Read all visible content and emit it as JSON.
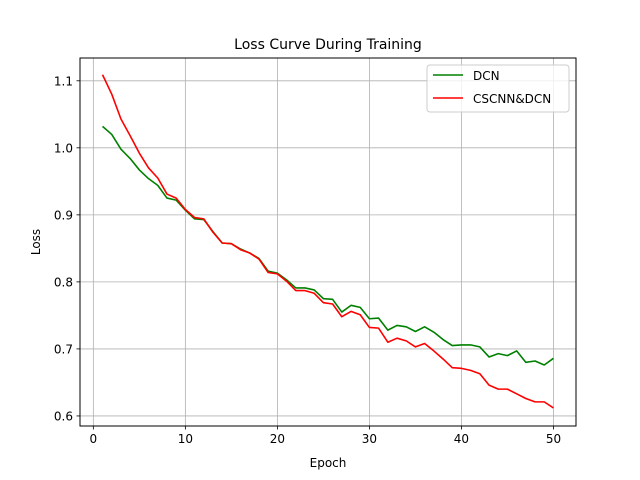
{
  "chart_data": {
    "type": "line",
    "title": "Loss Curve During Training",
    "xlabel": "Epoch",
    "ylabel": "Loss",
    "xlim": [
      -1.45,
      52.45
    ],
    "ylim": [
      0.585,
      1.134
    ],
    "xticks": [
      0,
      10,
      20,
      30,
      40,
      50
    ],
    "yticks": [
      0.6,
      0.7,
      0.8,
      0.9,
      1.0,
      1.1
    ],
    "xtick_labels": [
      "0",
      "10",
      "20",
      "30",
      "40",
      "50"
    ],
    "ytick_labels": [
      "0.6",
      "0.7",
      "0.8",
      "0.9",
      "1.0",
      "1.1"
    ],
    "grid": true,
    "legend_position": "top-right",
    "x": [
      1,
      2,
      3,
      4,
      5,
      6,
      7,
      8,
      9,
      10,
      11,
      12,
      13,
      14,
      15,
      16,
      17,
      18,
      19,
      20,
      21,
      22,
      23,
      24,
      25,
      26,
      27,
      28,
      29,
      30,
      31,
      32,
      33,
      34,
      35,
      36,
      37,
      38,
      39,
      40,
      41,
      42,
      43,
      44,
      45,
      46,
      47,
      48,
      49,
      50
    ],
    "series": [
      {
        "name": "DCN",
        "color": "#008000",
        "values": [
          1.032,
          1.02,
          0.998,
          0.984,
          0.967,
          0.954,
          0.944,
          0.925,
          0.922,
          0.907,
          0.894,
          0.893,
          0.875,
          0.858,
          0.857,
          0.849,
          0.843,
          0.835,
          0.816,
          0.813,
          0.803,
          0.791,
          0.791,
          0.788,
          0.775,
          0.774,
          0.755,
          0.765,
          0.762,
          0.745,
          0.746,
          0.728,
          0.735,
          0.733,
          0.726,
          0.733,
          0.725,
          0.714,
          0.705,
          0.706,
          0.706,
          0.703,
          0.688,
          0.693,
          0.69,
          0.697,
          0.68,
          0.682,
          0.676,
          0.686
        ]
      },
      {
        "name": "CSCNN&DCN",
        "color": "#ff0000",
        "values": [
          1.109,
          1.08,
          1.043,
          1.018,
          0.992,
          0.97,
          0.955,
          0.931,
          0.925,
          0.908,
          0.896,
          0.894,
          0.874,
          0.858,
          0.857,
          0.848,
          0.843,
          0.834,
          0.814,
          0.812,
          0.801,
          0.787,
          0.787,
          0.783,
          0.769,
          0.767,
          0.748,
          0.756,
          0.751,
          0.732,
          0.731,
          0.71,
          0.716,
          0.712,
          0.703,
          0.708,
          0.697,
          0.685,
          0.672,
          0.671,
          0.668,
          0.663,
          0.646,
          0.64,
          0.64,
          0.633,
          0.626,
          0.621,
          0.621,
          0.612
        ]
      }
    ]
  }
}
